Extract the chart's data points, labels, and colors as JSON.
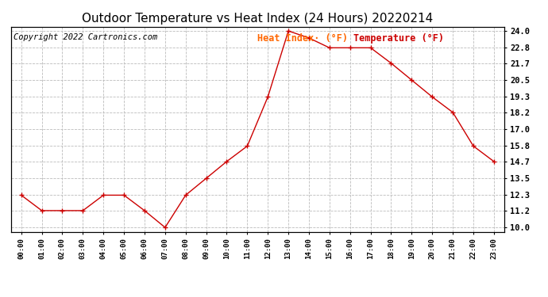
{
  "title": "Outdoor Temperature vs Heat Index (24 Hours) 20220214",
  "copyright": "Copyright 2022 Cartronics.com",
  "legend_heat_index": "Heat Index· (°F)",
  "legend_temperature": "Temperature (°F)",
  "hours": [
    "00:00",
    "01:00",
    "02:00",
    "03:00",
    "04:00",
    "05:00",
    "06:00",
    "07:00",
    "08:00",
    "09:00",
    "10:00",
    "11:00",
    "12:00",
    "13:00",
    "14:00",
    "15:00",
    "16:00",
    "17:00",
    "18:00",
    "19:00",
    "20:00",
    "21:00",
    "22:00",
    "23:00"
  ],
  "temperature": [
    12.3,
    11.2,
    11.2,
    11.2,
    12.3,
    12.3,
    11.2,
    10.0,
    12.3,
    13.5,
    14.7,
    15.8,
    19.3,
    24.0,
    23.5,
    22.8,
    22.8,
    22.8,
    21.7,
    20.5,
    19.3,
    18.2,
    15.8,
    14.7
  ],
  "ylim_min": 10.0,
  "ylim_max": 24.0,
  "yticks": [
    10.0,
    11.2,
    12.3,
    13.5,
    14.7,
    15.8,
    17.0,
    18.2,
    19.3,
    20.5,
    21.7,
    22.8,
    24.0
  ],
  "line_color": "#cc0000",
  "heat_index_color": "#ff6600",
  "temperature_color": "#cc0000",
  "background_color": "#ffffff",
  "grid_color": "#bbbbbb",
  "title_fontsize": 11,
  "copyright_fontsize": 7.5,
  "legend_fontsize": 8.5
}
